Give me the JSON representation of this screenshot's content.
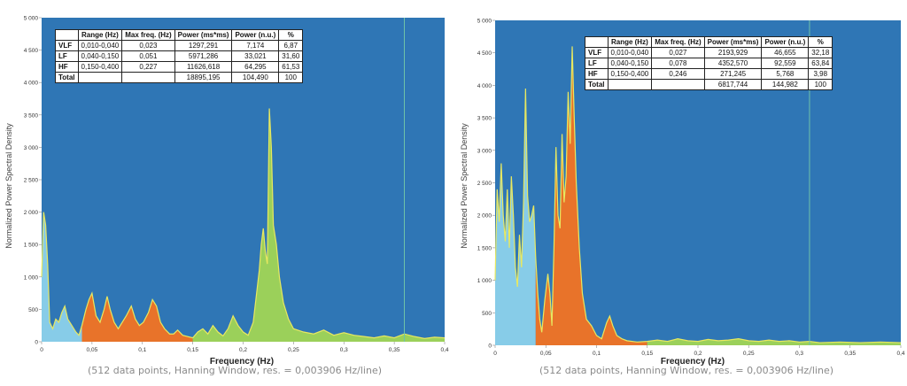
{
  "chart_data": [
    {
      "type": "area",
      "ylabel": "Normalized Power Spectral Density",
      "xlabel": "Frequency (Hz)",
      "caption": "(512 data points, Hanning Window, res. = 0,003906 Hz/line)",
      "xlim": [
        0,
        0.4
      ],
      "ylim": [
        0,
        5000
      ],
      "x_ticks": [
        "0",
        "0,05",
        "0,1",
        "0,15",
        "0,2",
        "0,25",
        "0,3",
        "0,35",
        "0,4"
      ],
      "y_ticks": [
        "0",
        "500",
        "1 000",
        "1 500",
        "2 000",
        "2 500",
        "3 000",
        "3 500",
        "4 000",
        "4 500",
        "5 000"
      ],
      "bands": [
        {
          "name": "VLF",
          "range": [
            0,
            0.04
          ],
          "color": "#87cce8"
        },
        {
          "name": "LF",
          "range": [
            0.04,
            0.15
          ],
          "color": "#e8732a"
        },
        {
          "name": "HF",
          "range": [
            0.15,
            0.4
          ],
          "color": "#9bd05a"
        }
      ],
      "marker_x": 0.36,
      "points": [
        [
          0,
          1000
        ],
        [
          0.002,
          2000
        ],
        [
          0.004,
          1800
        ],
        [
          0.006,
          1200
        ],
        [
          0.008,
          300
        ],
        [
          0.011,
          200
        ],
        [
          0.014,
          350
        ],
        [
          0.017,
          300
        ],
        [
          0.02,
          450
        ],
        [
          0.023,
          550
        ],
        [
          0.026,
          350
        ],
        [
          0.03,
          250
        ],
        [
          0.034,
          150
        ],
        [
          0.037,
          100
        ],
        [
          0.04,
          250
        ],
        [
          0.044,
          500
        ],
        [
          0.047,
          650
        ],
        [
          0.05,
          750
        ],
        [
          0.054,
          400
        ],
        [
          0.058,
          300
        ],
        [
          0.062,
          500
        ],
        [
          0.065,
          700
        ],
        [
          0.068,
          500
        ],
        [
          0.072,
          300
        ],
        [
          0.076,
          200
        ],
        [
          0.08,
          300
        ],
        [
          0.084,
          400
        ],
        [
          0.089,
          550
        ],
        [
          0.093,
          350
        ],
        [
          0.097,
          250
        ],
        [
          0.101,
          300
        ],
        [
          0.106,
          450
        ],
        [
          0.11,
          650
        ],
        [
          0.114,
          550
        ],
        [
          0.118,
          300
        ],
        [
          0.122,
          200
        ],
        [
          0.127,
          120
        ],
        [
          0.131,
          120
        ],
        [
          0.135,
          180
        ],
        [
          0.14,
          100
        ],
        [
          0.145,
          80
        ],
        [
          0.15,
          60
        ],
        [
          0.155,
          150
        ],
        [
          0.16,
          200
        ],
        [
          0.165,
          120
        ],
        [
          0.17,
          250
        ],
        [
          0.175,
          150
        ],
        [
          0.18,
          90
        ],
        [
          0.185,
          200
        ],
        [
          0.19,
          400
        ],
        [
          0.195,
          250
        ],
        [
          0.2,
          150
        ],
        [
          0.205,
          100
        ],
        [
          0.21,
          300
        ],
        [
          0.213,
          700
        ],
        [
          0.216,
          1100
        ],
        [
          0.218,
          1500
        ],
        [
          0.22,
          1750
        ],
        [
          0.222,
          1400
        ],
        [
          0.224,
          1200
        ],
        [
          0.226,
          3600
        ],
        [
          0.228,
          3000
        ],
        [
          0.23,
          1800
        ],
        [
          0.233,
          1500
        ],
        [
          0.236,
          1000
        ],
        [
          0.24,
          600
        ],
        [
          0.245,
          350
        ],
        [
          0.25,
          200
        ],
        [
          0.26,
          150
        ],
        [
          0.27,
          120
        ],
        [
          0.28,
          180
        ],
        [
          0.29,
          100
        ],
        [
          0.3,
          140
        ],
        [
          0.31,
          100
        ],
        [
          0.32,
          80
        ],
        [
          0.33,
          60
        ],
        [
          0.34,
          90
        ],
        [
          0.35,
          60
        ],
        [
          0.36,
          120
        ],
        [
          0.37,
          80
        ],
        [
          0.38,
          50
        ],
        [
          0.39,
          70
        ],
        [
          0.4,
          60
        ]
      ],
      "table": {
        "headers": [
          "",
          "Range (Hz)",
          "Max freq. (Hz)",
          "Power (ms*ms)",
          "Power (n.u.)",
          "%"
        ],
        "rows": [
          [
            "VLF",
            "0,010-0,040",
            "0,023",
            "1297,291",
            "7,174",
            "6,87"
          ],
          [
            "LF",
            "0,040-0,150",
            "0,051",
            "5971,286",
            "33,021",
            "31,60"
          ],
          [
            "HF",
            "0,150-0,400",
            "0,227",
            "11626,618",
            "64,295",
            "61,53"
          ],
          [
            "Total",
            "",
            "",
            "18895,195",
            "104,490",
            "100"
          ]
        ]
      }
    },
    {
      "type": "area",
      "ylabel": "Normalized Power Spectral Density",
      "xlabel": "Frequency (Hz)",
      "caption": "(512 data points, Hanning Window, res. = 0,003906 Hz/line)",
      "xlim": [
        0,
        0.4
      ],
      "ylim": [
        0,
        5000
      ],
      "x_ticks": [
        "0",
        "0,05",
        "0,1",
        "0,15",
        "0,2",
        "0,25",
        "0,3",
        "0,35",
        "0,4"
      ],
      "y_ticks": [
        "0",
        "500",
        "1 000",
        "1 500",
        "2 000",
        "2 500",
        "3 000",
        "3 500",
        "4 000",
        "4 500",
        "5 000"
      ],
      "bands": [
        {
          "name": "VLF",
          "range": [
            0,
            0.04
          ],
          "color": "#87cce8"
        },
        {
          "name": "LF",
          "range": [
            0.04,
            0.15
          ],
          "color": "#e8732a"
        },
        {
          "name": "HF",
          "range": [
            0.15,
            0.4
          ],
          "color": "#9bd05a"
        }
      ],
      "marker_x": 0.31,
      "points": [
        [
          0,
          1000
        ],
        [
          0.002,
          2400
        ],
        [
          0.004,
          1900
        ],
        [
          0.006,
          2800
        ],
        [
          0.008,
          2000
        ],
        [
          0.01,
          1600
        ],
        [
          0.012,
          2400
        ],
        [
          0.014,
          1500
        ],
        [
          0.016,
          2600
        ],
        [
          0.018,
          2000
        ],
        [
          0.02,
          1200
        ],
        [
          0.022,
          900
        ],
        [
          0.024,
          1700
        ],
        [
          0.026,
          1200
        ],
        [
          0.028,
          2200
        ],
        [
          0.03,
          3950
        ],
        [
          0.032,
          2300
        ],
        [
          0.034,
          1900
        ],
        [
          0.036,
          2000
        ],
        [
          0.038,
          2150
        ],
        [
          0.04,
          1350
        ],
        [
          0.042,
          800
        ],
        [
          0.044,
          400
        ],
        [
          0.046,
          200
        ],
        [
          0.049,
          700
        ],
        [
          0.052,
          1100
        ],
        [
          0.054,
          800
        ],
        [
          0.056,
          300
        ],
        [
          0.058,
          1500
        ],
        [
          0.06,
          3050
        ],
        [
          0.062,
          2000
        ],
        [
          0.064,
          1800
        ],
        [
          0.066,
          3250
        ],
        [
          0.068,
          2200
        ],
        [
          0.07,
          2600
        ],
        [
          0.072,
          3900
        ],
        [
          0.074,
          3100
        ],
        [
          0.076,
          4600
        ],
        [
          0.078,
          3500
        ],
        [
          0.08,
          2500
        ],
        [
          0.083,
          1500
        ],
        [
          0.086,
          800
        ],
        [
          0.09,
          400
        ],
        [
          0.095,
          300
        ],
        [
          0.1,
          150
        ],
        [
          0.105,
          100
        ],
        [
          0.11,
          350
        ],
        [
          0.113,
          450
        ],
        [
          0.116,
          300
        ],
        [
          0.12,
          150
        ],
        [
          0.125,
          100
        ],
        [
          0.13,
          70
        ],
        [
          0.14,
          50
        ],
        [
          0.15,
          60
        ],
        [
          0.16,
          80
        ],
        [
          0.17,
          60
        ],
        [
          0.18,
          100
        ],
        [
          0.19,
          70
        ],
        [
          0.2,
          60
        ],
        [
          0.21,
          90
        ],
        [
          0.22,
          70
        ],
        [
          0.23,
          80
        ],
        [
          0.24,
          100
        ],
        [
          0.25,
          70
        ],
        [
          0.26,
          60
        ],
        [
          0.27,
          80
        ],
        [
          0.28,
          60
        ],
        [
          0.29,
          70
        ],
        [
          0.3,
          50
        ],
        [
          0.31,
          60
        ],
        [
          0.32,
          40
        ],
        [
          0.34,
          50
        ],
        [
          0.36,
          40
        ],
        [
          0.38,
          50
        ],
        [
          0.4,
          40
        ]
      ],
      "table": {
        "headers": [
          "",
          "Range (Hz)",
          "Max freq. (Hz)",
          "Power (ms*ms)",
          "Power (n.u.)",
          "%"
        ],
        "rows": [
          [
            "VLF",
            "0,010-0,040",
            "0,027",
            "2193,929",
            "46,655",
            "32,18"
          ],
          [
            "LF",
            "0,040-0,150",
            "0,078",
            "4352,570",
            "92,559",
            "63,84"
          ],
          [
            "HF",
            "0,150-0,400",
            "0,246",
            "271,245",
            "5,768",
            "3,98"
          ],
          [
            "Total",
            "",
            "",
            "6817,744",
            "144,982",
            "100"
          ]
        ]
      }
    }
  ],
  "colors": {
    "plot_bg": "#2f76b5",
    "curve": "#e8e860",
    "marker": "#6fc3a8"
  }
}
